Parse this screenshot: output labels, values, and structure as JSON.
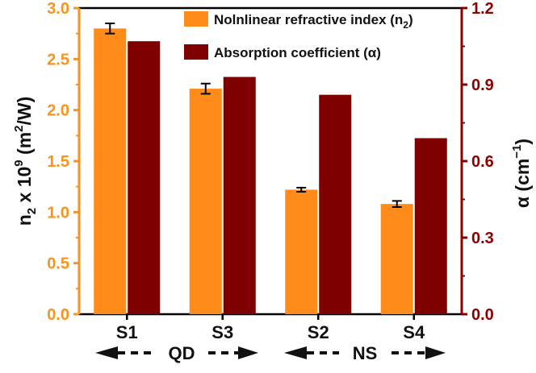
{
  "chart_data": {
    "type": "bar",
    "categories": [
      "S1",
      "S3",
      "S2",
      "S4"
    ],
    "series": [
      {
        "name": "Nolnlinear refractive index (n2)",
        "axis": "left",
        "color": "#ff8c1a",
        "values": [
          2.8,
          2.21,
          1.22,
          1.08
        ],
        "errors": [
          0.05,
          0.05,
          0.02,
          0.03
        ]
      },
      {
        "name": "Absorption coefficient (α)",
        "axis": "right",
        "color": "#7f0000",
        "values": [
          1.07,
          0.93,
          0.86,
          0.69
        ]
      }
    ],
    "ylabel_left": "n2 x 10^9 (m²/W)",
    "ylabel_right": "α (cm⁻¹)",
    "ylim_left": [
      0,
      3.0
    ],
    "ylim_right": [
      0,
      1.2
    ],
    "yticks_left": [
      "0.0",
      "0.5",
      "1.0",
      "1.5",
      "2.0",
      "2.5",
      "3.0"
    ],
    "yticks_right": [
      "0.0",
      "0.3",
      "0.6",
      "0.9",
      "1.2"
    ],
    "groups": [
      {
        "label": "QD",
        "categories": [
          "S1",
          "S3"
        ]
      },
      {
        "label": "NS",
        "categories": [
          "S2",
          "S4"
        ]
      }
    ],
    "legend_position": "top-right",
    "grid": false
  },
  "colors": {
    "left_axis": "#f7931e",
    "right_axis": "#8b0000",
    "bar_n2": "#ff8c1a",
    "bar_alpha": "#7f0000"
  },
  "labels": {
    "legend_n2_main": "Nolnlinear refractive index (n",
    "legend_n2_sub": "2",
    "legend_n2_close": ")",
    "legend_alpha": "Absorption coefficient (α)",
    "ylabel_left_n": "n",
    "ylabel_left_sub": "2",
    "ylabel_left_mid": " x 10",
    "ylabel_left_exp": "9",
    "ylabel_left_unit_a": " (m",
    "ylabel_left_unit_exp": "2",
    "ylabel_left_unit_b": "/W)",
    "ylabel_right_a": "α (cm",
    "ylabel_right_exp": "−1",
    "ylabel_right_b": ")",
    "group_qd": "QD",
    "group_ns": "NS"
  }
}
